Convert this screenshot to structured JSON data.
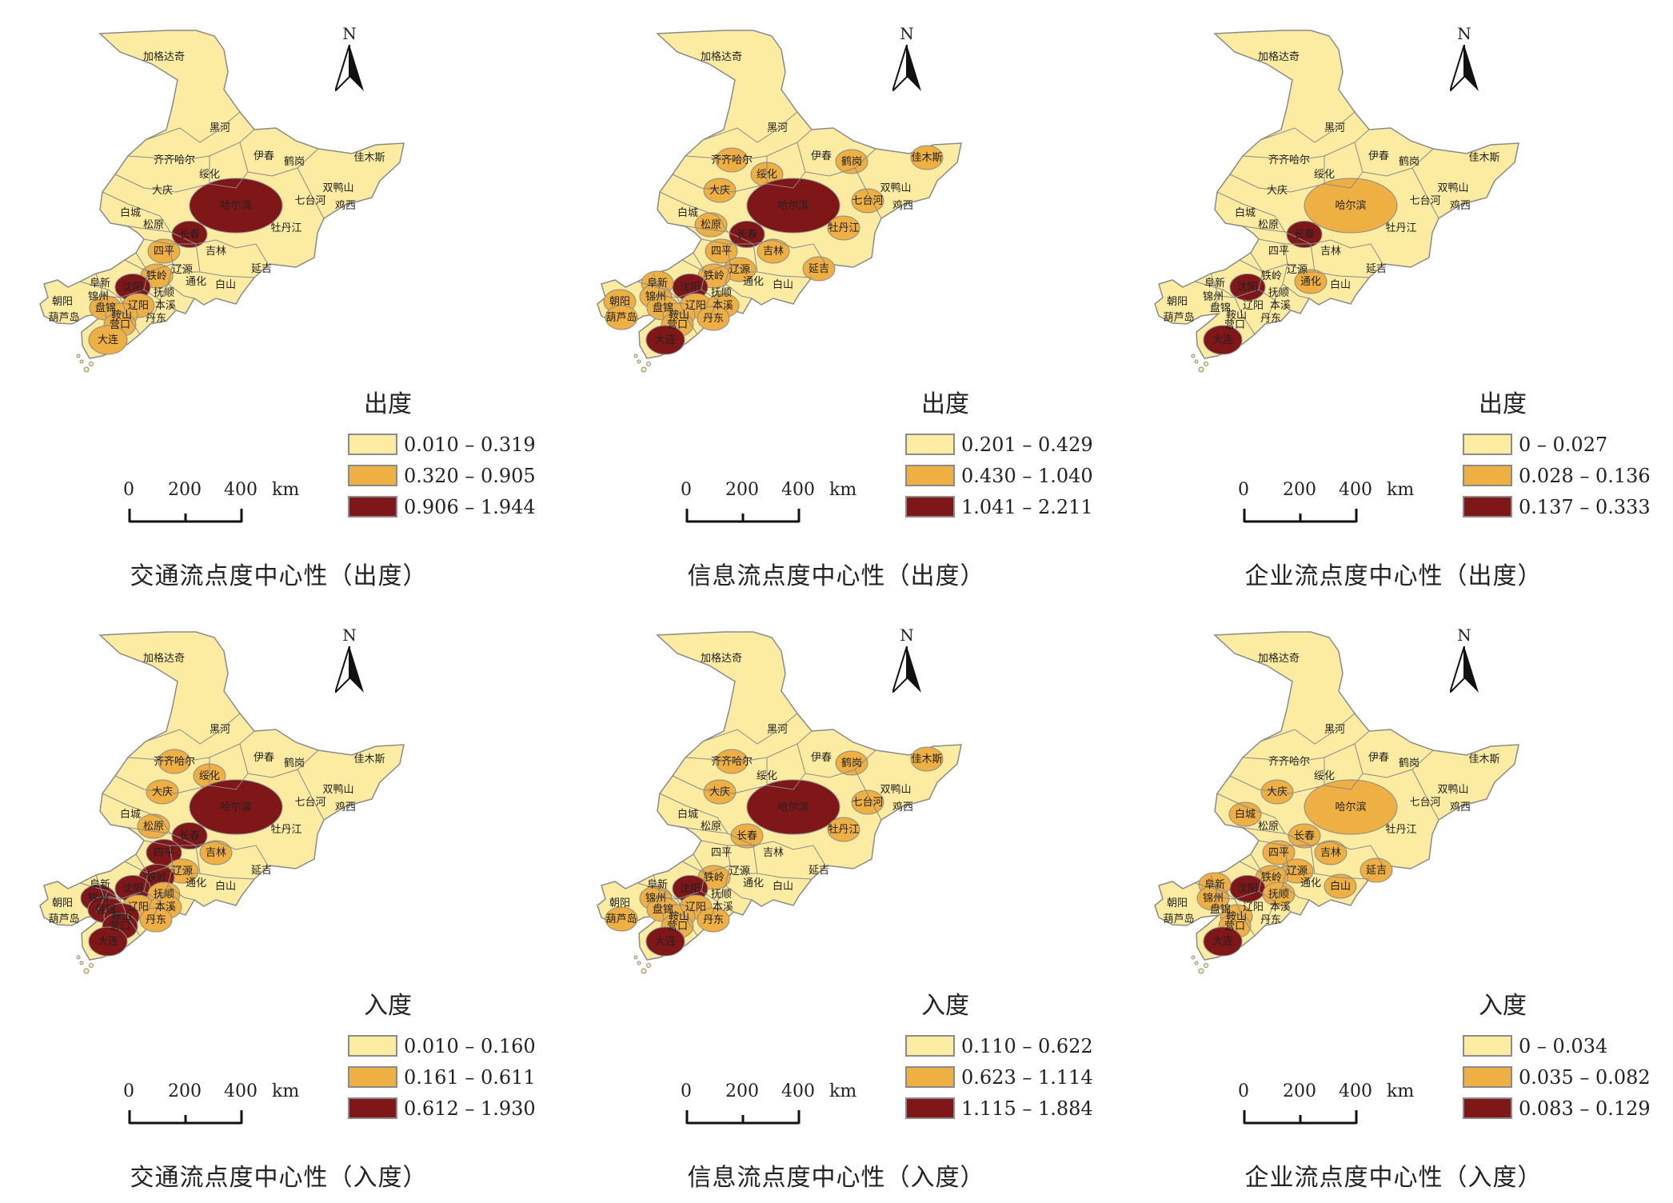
{
  "colors": {
    "class1": "#fbeca2",
    "class2": "#eeaf43",
    "class3": "#7f1618",
    "border": "#8a8a8a"
  },
  "north_label": "N",
  "scale": {
    "ticks": [
      "0",
      "200",
      "400"
    ],
    "unit": "km"
  },
  "city_names": [
    "加格达奇",
    "黑河",
    "齐齐哈尔",
    "伊春",
    "鹤岗",
    "佳木斯",
    "绥化",
    "双鸭山",
    "大庆",
    "七台河",
    "哈尔滨",
    "鸡西",
    "白城",
    "牡丹江",
    "松原",
    "长春",
    "吉林",
    "四平",
    "辽源",
    "延吉",
    "铁岭",
    "沈阳",
    "阜新",
    "抚顺",
    "通化",
    "白山",
    "朝阳",
    "锦州",
    "盘锦",
    "辽阳",
    "本溪",
    "鞍山",
    "葫芦岛",
    "营口",
    "丹东",
    "大连"
  ],
  "panels": [
    {
      "title": "交通流点度中心性（出度）",
      "legend_title": "出度",
      "legend": [
        "0.010 – 0.319",
        "0.320 – 0.905",
        "0.906 – 1.944"
      ],
      "classes": {
        "哈尔滨": 3,
        "长春": 3,
        "沈阳": 3,
        "四平": 2,
        "铁岭": 2,
        "辽阳": 2,
        "鞍山": 2,
        "盘锦": 2,
        "营口": 2,
        "大连": 2
      }
    },
    {
      "title": "信息流点度中心性（出度）",
      "legend_title": "出度",
      "legend": [
        "0.201 – 0.429",
        "0.430 – 1.040",
        "1.041 – 2.211"
      ],
      "classes": {
        "哈尔滨": 3,
        "长春": 3,
        "沈阳": 3,
        "大连": 3,
        "齐齐哈尔": 2,
        "大庆": 2,
        "绥化": 2,
        "佳木斯": 2,
        "鹤岗": 2,
        "七台河": 2,
        "牡丹江": 2,
        "延吉": 2,
        "吉林": 2,
        "四平": 2,
        "铁岭": 2,
        "锦州": 2,
        "盘锦": 2,
        "鞍山": 2,
        "辽阳": 2,
        "营口": 2,
        "葫芦岛": 2,
        "丹东": 2,
        "本溪": 2,
        "辽源": 2,
        "阜新": 2,
        "朝阳": 2,
        "松原": 2
      }
    },
    {
      "title": "企业流点度中心性（出度）",
      "legend_title": "出度",
      "legend": [
        "0 – 0.027",
        "0.028 – 0.136",
        "0.137 – 0.333"
      ],
      "classes": {
        "长春": 3,
        "沈阳": 3,
        "大连": 3,
        "哈尔滨": 2,
        "通化": 2
      }
    },
    {
      "title": "交通流点度中心性（入度）",
      "legend_title": "入度",
      "legend": [
        "0.010 – 0.160",
        "0.161 – 0.611",
        "0.612 – 1.930"
      ],
      "classes": {
        "哈尔滨": 3,
        "长春": 3,
        "四平": 3,
        "沈阳": 3,
        "铁岭": 3,
        "锦州": 3,
        "盘锦": 3,
        "鞍山": 3,
        "营口": 3,
        "大连": 3,
        "齐齐哈尔": 2,
        "大庆": 2,
        "绥化": 2,
        "吉林": 2,
        "辽阳": 2,
        "本溪": 2,
        "丹东": 2,
        "抚顺": 2,
        "辽源": 2,
        "松原": 2
      }
    },
    {
      "title": "信息流点度中心性（入度）",
      "legend_title": "入度",
      "legend": [
        "0.110 – 0.622",
        "0.623 – 1.114",
        "1.115 – 1.884"
      ],
      "classes": {
        "哈尔滨": 3,
        "沈阳": 3,
        "大连": 3,
        "齐齐哈尔": 2,
        "大庆": 2,
        "佳木斯": 2,
        "鹤岗": 2,
        "七台河": 2,
        "牡丹江": 2,
        "长春": 2,
        "铁岭": 2,
        "锦州": 2,
        "盘锦": 2,
        "鞍山": 2,
        "辽阳": 2,
        "营口": 2,
        "葫芦岛": 2,
        "丹东": 2
      }
    },
    {
      "title": "企业流点度中心性（入度）",
      "legend_title": "入度",
      "legend": [
        "0 – 0.034",
        "0.035 – 0.082",
        "0.083 – 0.129"
      ],
      "classes": {
        "沈阳": 3,
        "大连": 3,
        "大庆": 2,
        "白城": 2,
        "哈尔滨": 2,
        "长春": 2,
        "吉林": 2,
        "四平": 2,
        "辽源": 2,
        "延吉": 2,
        "白山": 2,
        "铁岭": 2,
        "抚顺": 2,
        "阜新": 2,
        "锦州": 2,
        "鞍山": 2,
        "营口": 2
      }
    }
  ]
}
